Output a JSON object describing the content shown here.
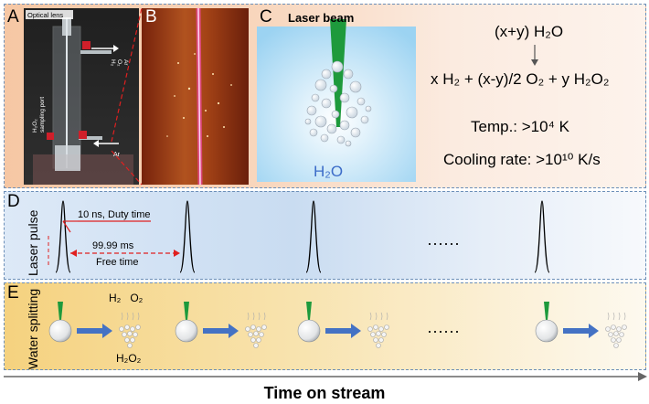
{
  "panels": {
    "a": {
      "label": "A",
      "optical_lens": "Optical lens",
      "outlet_gases": [
        "H₂",
        "O₂",
        "Ar"
      ],
      "sampling_port": [
        "H₂O₂",
        "sampling port"
      ],
      "inlet": "Ar"
    },
    "b": {
      "label": "B"
    },
    "c": {
      "label": "C",
      "laser_beam": "Laser beam",
      "water": "H₂O",
      "reaction_reactant": "(x+y) H₂O",
      "reaction_products": "x H₂ + (x-y)/2 O₂ + y H₂O₂",
      "temperature": "Temp.: >10⁴ K",
      "cooling_rate": "Cooling rate: >10¹⁰ K/s"
    },
    "d": {
      "label": "D",
      "row_title": "Laser pulse",
      "duty_time": "10 ns, Duty time",
      "interval": "99.99 ms",
      "free_time": "Free time",
      "ellipsis": "······"
    },
    "e": {
      "label": "E",
      "row_title": "Water splitting",
      "gas_products": "H₂   O₂",
      "liquid_product": "H₂O₂",
      "ellipsis": "······"
    }
  },
  "axis": {
    "label": "Time on stream"
  },
  "colors": {
    "laser_green": "#1e9a3c",
    "arrow_blue": "#4472c4",
    "dashed_red": "#e02020",
    "laser_pink": "#ff2fae"
  }
}
